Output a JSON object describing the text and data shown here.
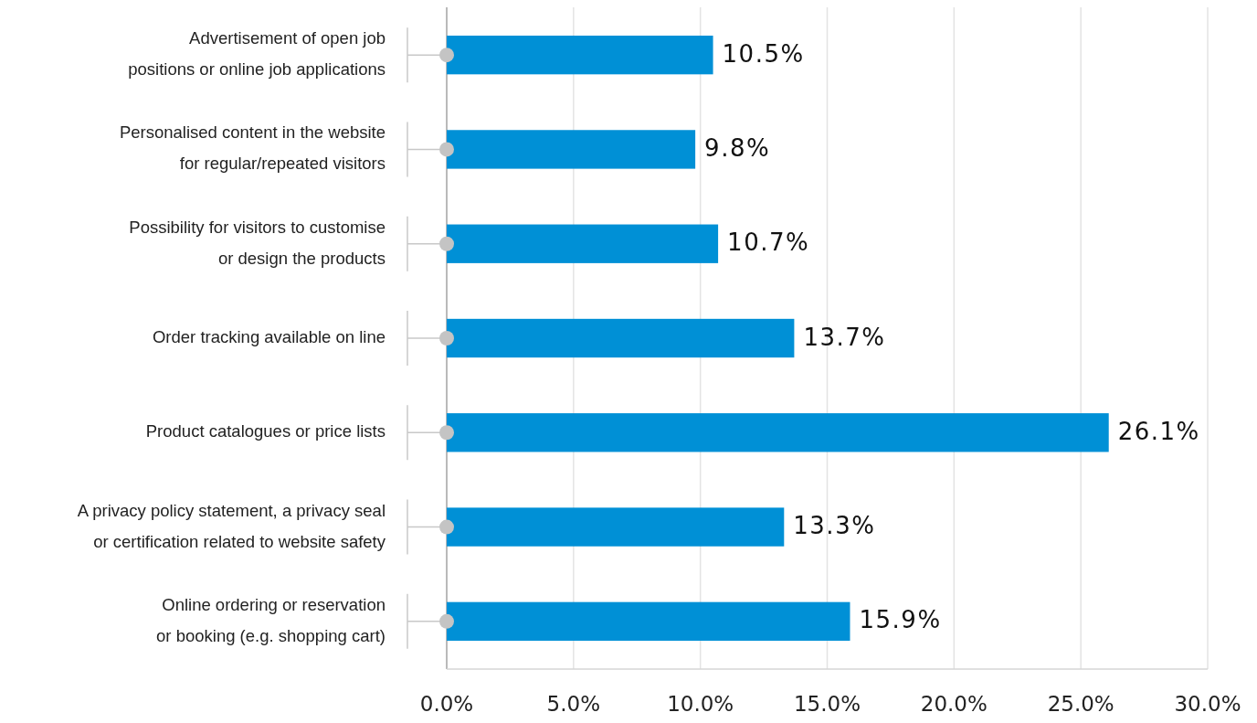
{
  "chart_data": {
    "type": "bar",
    "orientation": "horizontal",
    "categories": [
      "Advertisement of open job\npositions or online job applications",
      "Personalised content in the website\nfor regular/repeated visitors",
      "Possibility for visitors to customise\nor design the products",
      "Order tracking available on line",
      "Product catalogues or price lists",
      "A privacy policy statement, a privacy seal\nor certification related to website safety",
      "Online ordering or reservation\nor booking (e.g. shopping cart)"
    ],
    "values": [
      10.5,
      9.8,
      10.7,
      13.7,
      26.1,
      13.3,
      15.9
    ],
    "value_labels": [
      "10.5%",
      "9.8%",
      "10.7%",
      "13.7%",
      "26.1%",
      "13.3%",
      "15.9%"
    ],
    "color": "#0090d6",
    "xlim": [
      0,
      30
    ],
    "xticks": [
      {
        "value": 0,
        "label": "0.0%"
      },
      {
        "value": 5,
        "label": "5.0%"
      },
      {
        "value": 10,
        "label": "10.0%"
      },
      {
        "value": 15,
        "label": "15.0%"
      },
      {
        "value": 20,
        "label": "20.0%"
      },
      {
        "value": 25,
        "label": "25.0%"
      },
      {
        "value": 30,
        "label": "30.0%"
      }
    ],
    "grid": "x"
  }
}
